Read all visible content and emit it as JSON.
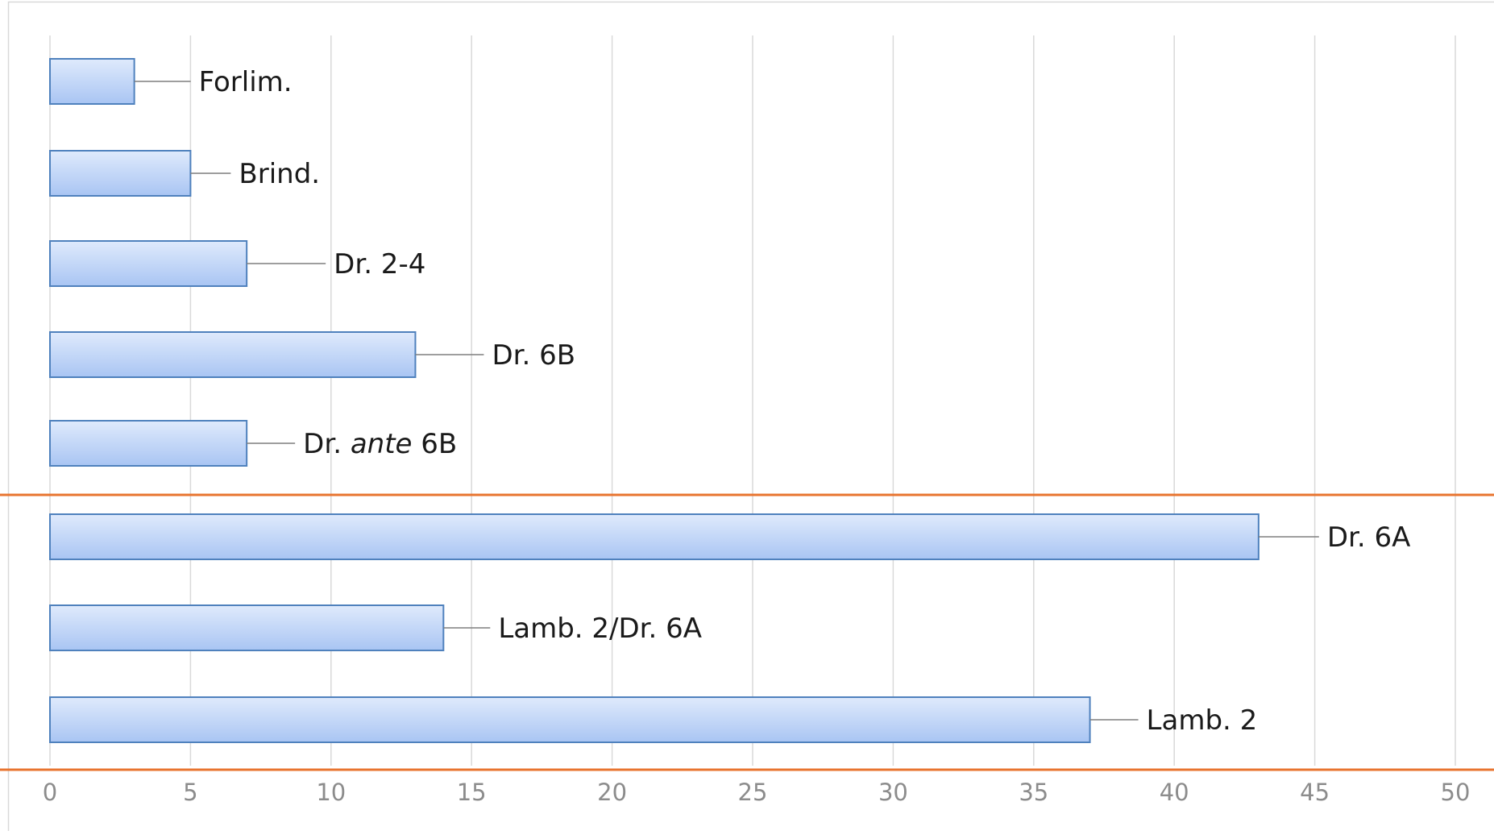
{
  "chart_data": {
    "type": "bar",
    "orientation": "horizontal",
    "title": "",
    "xlabel": "",
    "ylabel": "",
    "categories": [
      "Forlim.",
      "Brind.",
      "Dr. 2-4",
      "Dr. 6B",
      "Dr. ante 6B",
      "Dr. 6A",
      "Lamb. 2/Dr. 6A",
      "Lamb. 2"
    ],
    "category_labels": [
      {
        "parts": [
          {
            "text": "Forlim.",
            "italic": false
          }
        ]
      },
      {
        "parts": [
          {
            "text": "Brind.",
            "italic": false
          }
        ]
      },
      {
        "parts": [
          {
            "text": "Dr. 2-4",
            "italic": false
          }
        ]
      },
      {
        "parts": [
          {
            "text": "Dr. 6B",
            "italic": false
          }
        ]
      },
      {
        "parts": [
          {
            "text": "Dr. ",
            "italic": false
          },
          {
            "text": "ante",
            "italic": true
          },
          {
            "text": " 6B",
            "italic": false
          }
        ]
      },
      {
        "parts": [
          {
            "text": "Dr. 6A",
            "italic": false
          }
        ]
      },
      {
        "parts": [
          {
            "text": "Lamb. 2/Dr. 6A",
            "italic": false
          }
        ]
      },
      {
        "parts": [
          {
            "text": "Lamb. 2",
            "italic": false
          }
        ]
      }
    ],
    "values": [
      3,
      5,
      7,
      13,
      7,
      43,
      14,
      37
    ],
    "xlim": [
      0,
      50
    ],
    "xticks": [
      0,
      5,
      10,
      15,
      20,
      25,
      30,
      35,
      40,
      45,
      50
    ],
    "xtick_labels": [
      "0",
      "5",
      "10",
      "15",
      "20",
      "25",
      "30",
      "35",
      "40",
      "45",
      "50"
    ],
    "grid": true,
    "legend": "none",
    "group_separators_after_index": [
      4,
      7
    ],
    "colors": {
      "bar_fill_top": "#dfeafc",
      "bar_fill_bottom": "#a9c5f3",
      "bar_stroke": "#4f81bd",
      "grid": "#d9d9d9",
      "separator": "#e8742f",
      "tick_label": "#8c8c8c",
      "label": "#1a1a1a",
      "leader": "#7f7f7f"
    }
  }
}
